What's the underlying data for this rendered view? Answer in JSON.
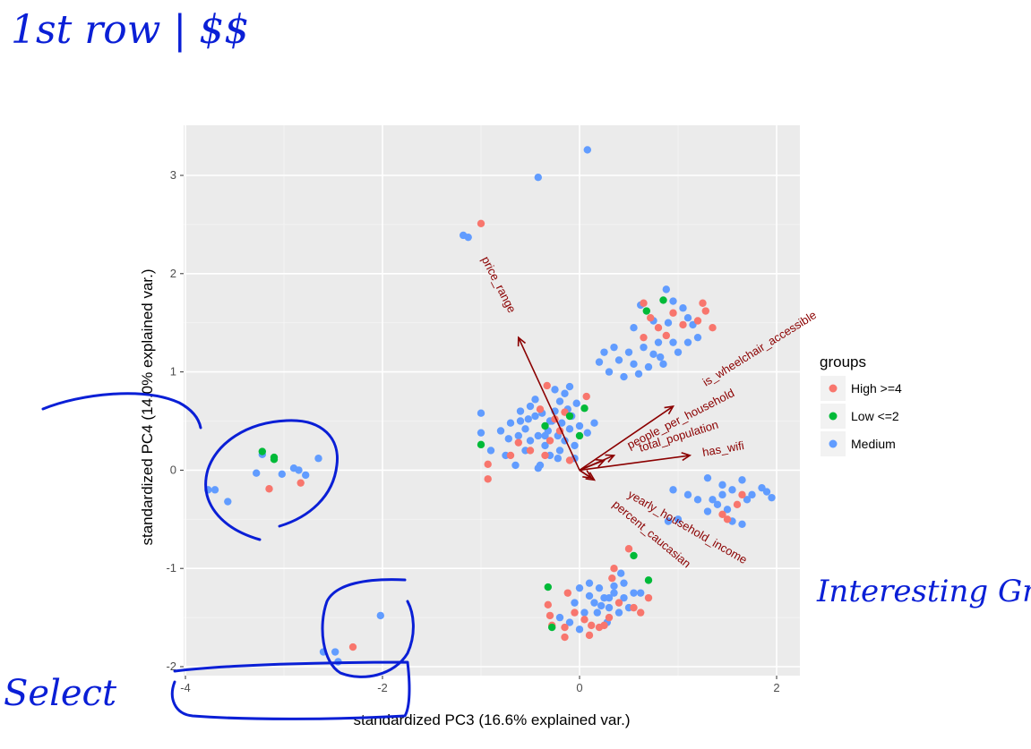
{
  "chart_data": {
    "type": "scatter",
    "xlabel": "standardized PC3 (16.6% explained var.)",
    "ylabel": "standardized PC4 (14.0% explained var.)",
    "xlim": [
      -4.1,
      2.25
    ],
    "ylim": [
      -2.05,
      3.5
    ],
    "x_ticks": [
      -4,
      -2,
      0,
      2
    ],
    "y_ticks": [
      -2,
      -1,
      0,
      1,
      2,
      3
    ],
    "grid": true,
    "legend": {
      "title": "groups",
      "position": "right"
    },
    "series": [
      {
        "name": "High >=4",
        "color": "#F8766D",
        "points": [
          [
            -1.0,
            2.51
          ],
          [
            -0.93,
            0.06
          ],
          [
            -0.93,
            -0.09
          ],
          [
            -0.33,
            0.86
          ],
          [
            -0.4,
            0.62
          ],
          [
            -0.15,
            0.59
          ],
          [
            0.07,
            0.75
          ],
          [
            -0.3,
            0.3
          ],
          [
            -0.5,
            0.2
          ],
          [
            -0.62,
            0.28
          ],
          [
            -0.2,
            0.4
          ],
          [
            -0.1,
            0.1
          ],
          [
            -0.35,
            0.15
          ],
          [
            -0.7,
            0.15
          ],
          [
            -0.25,
            0.52
          ],
          [
            -3.15,
            -0.19
          ],
          [
            -2.83,
            -0.13
          ],
          [
            -2.3,
            -1.8
          ],
          [
            0.65,
            1.7
          ],
          [
            0.72,
            1.55
          ],
          [
            0.8,
            1.45
          ],
          [
            1.05,
            1.48
          ],
          [
            1.25,
            1.7
          ],
          [
            1.28,
            1.62
          ],
          [
            1.35,
            1.45
          ],
          [
            0.88,
            1.37
          ],
          [
            0.65,
            1.35
          ],
          [
            0.95,
            1.6
          ],
          [
            1.2,
            1.52
          ],
          [
            1.65,
            -0.25
          ],
          [
            1.45,
            -0.45
          ],
          [
            1.5,
            -0.5
          ],
          [
            1.6,
            -0.35
          ],
          [
            0.5,
            -0.8
          ],
          [
            0.35,
            -1.0
          ],
          [
            0.33,
            -1.1
          ],
          [
            0.7,
            -1.3
          ],
          [
            -0.12,
            -1.25
          ],
          [
            -0.32,
            -1.37
          ],
          [
            -0.3,
            -1.48
          ],
          [
            -0.15,
            -1.6
          ],
          [
            0.05,
            -1.52
          ],
          [
            0.2,
            -1.6
          ],
          [
            0.3,
            -1.5
          ],
          [
            0.62,
            -1.45
          ],
          [
            -0.05,
            -1.45
          ],
          [
            0.12,
            -1.58
          ],
          [
            -0.15,
            -1.7
          ],
          [
            0.1,
            -1.68
          ],
          [
            0.25,
            -1.58
          ],
          [
            -0.28,
            -1.58
          ],
          [
            0.4,
            -1.35
          ],
          [
            0.55,
            -1.4
          ]
        ]
      },
      {
        "name": "Low <=2",
        "color": "#00BA38",
        "points": [
          [
            -3.22,
            0.19
          ],
          [
            -3.1,
            0.13
          ],
          [
            -3.1,
            0.11
          ],
          [
            -1.0,
            0.26
          ],
          [
            0.05,
            0.63
          ],
          [
            -0.1,
            0.55
          ],
          [
            0.0,
            0.35
          ],
          [
            -0.35,
            0.45
          ],
          [
            0.85,
            1.73
          ],
          [
            0.68,
            1.62
          ],
          [
            0.55,
            -0.87
          ],
          [
            0.7,
            -1.12
          ],
          [
            -0.32,
            -1.19
          ],
          [
            -0.28,
            -1.6
          ]
        ]
      },
      {
        "name": "Medium",
        "color": "#619CFF",
        "points": [
          [
            0.08,
            3.26
          ],
          [
            -0.42,
            2.98
          ],
          [
            -1.18,
            2.39
          ],
          [
            -1.13,
            2.37
          ],
          [
            -3.77,
            -0.2
          ],
          [
            -3.7,
            -0.2
          ],
          [
            -3.57,
            -0.32
          ],
          [
            -3.28,
            -0.03
          ],
          [
            -3.22,
            0.16
          ],
          [
            -3.02,
            -0.04
          ],
          [
            -2.9,
            0.02
          ],
          [
            -2.85,
            0.0
          ],
          [
            -2.78,
            -0.05
          ],
          [
            -2.65,
            0.12
          ],
          [
            -2.02,
            -1.48
          ],
          [
            -2.6,
            -1.85
          ],
          [
            -2.48,
            -1.85
          ],
          [
            -2.45,
            -1.95
          ],
          [
            -1.0,
            0.58
          ],
          [
            -1.0,
            0.38
          ],
          [
            -0.9,
            0.2
          ],
          [
            -0.8,
            0.4
          ],
          [
            -0.72,
            0.32
          ],
          [
            -0.7,
            0.48
          ],
          [
            -0.6,
            0.5
          ],
          [
            -0.55,
            0.42
          ],
          [
            -0.5,
            0.65
          ],
          [
            -0.45,
            0.55
          ],
          [
            -0.42,
            0.35
          ],
          [
            -0.38,
            0.58
          ],
          [
            -0.35,
            0.25
          ],
          [
            -0.32,
            0.4
          ],
          [
            -0.28,
            0.5
          ],
          [
            -0.25,
            0.6
          ],
          [
            -0.22,
            0.35
          ],
          [
            -0.2,
            0.7
          ],
          [
            -0.18,
            0.48
          ],
          [
            -0.15,
            0.3
          ],
          [
            -0.12,
            0.62
          ],
          [
            -0.1,
            0.42
          ],
          [
            -0.08,
            0.55
          ],
          [
            -0.05,
            0.25
          ],
          [
            -0.03,
            0.68
          ],
          [
            0.0,
            0.45
          ],
          [
            0.08,
            0.38
          ],
          [
            0.15,
            0.48
          ],
          [
            -0.5,
            0.3
          ],
          [
            -0.62,
            0.35
          ],
          [
            -0.3,
            0.15
          ],
          [
            -0.4,
            0.05
          ],
          [
            -0.2,
            0.2
          ],
          [
            -0.45,
            0.72
          ],
          [
            -0.25,
            0.82
          ],
          [
            -0.1,
            0.85
          ],
          [
            -0.55,
            0.2
          ],
          [
            -0.35,
            0.35
          ],
          [
            -0.6,
            0.6
          ],
          [
            -0.15,
            0.78
          ],
          [
            -0.42,
            0.02
          ],
          [
            -0.22,
            0.12
          ],
          [
            -0.65,
            0.05
          ],
          [
            -0.3,
            0.5
          ],
          [
            -0.75,
            0.15
          ],
          [
            -0.05,
            0.12
          ],
          [
            -0.52,
            0.52
          ],
          [
            0.62,
            1.68
          ],
          [
            0.88,
            1.84
          ],
          [
            0.95,
            1.72
          ],
          [
            1.05,
            1.65
          ],
          [
            1.1,
            1.55
          ],
          [
            1.15,
            1.48
          ],
          [
            0.9,
            1.5
          ],
          [
            0.75,
            1.52
          ],
          [
            0.55,
            1.45
          ],
          [
            0.5,
            1.2
          ],
          [
            0.65,
            1.25
          ],
          [
            0.8,
            1.3
          ],
          [
            0.95,
            1.3
          ],
          [
            1.1,
            1.3
          ],
          [
            1.2,
            1.35
          ],
          [
            0.35,
            1.25
          ],
          [
            0.25,
            1.2
          ],
          [
            0.2,
            1.1
          ],
          [
            0.4,
            1.12
          ],
          [
            0.55,
            1.08
          ],
          [
            0.7,
            1.05
          ],
          [
            0.85,
            1.08
          ],
          [
            0.45,
            0.95
          ],
          [
            0.6,
            0.98
          ],
          [
            0.3,
            1.0
          ],
          [
            0.82,
            1.15
          ],
          [
            1.0,
            1.2
          ],
          [
            0.75,
            1.18
          ],
          [
            1.3,
            -0.08
          ],
          [
            1.45,
            -0.15
          ],
          [
            1.65,
            -0.1
          ],
          [
            1.75,
            -0.25
          ],
          [
            1.85,
            -0.18
          ],
          [
            1.9,
            -0.22
          ],
          [
            1.95,
            -0.28
          ],
          [
            1.55,
            -0.2
          ],
          [
            1.35,
            -0.3
          ],
          [
            1.2,
            -0.3
          ],
          [
            1.1,
            -0.25
          ],
          [
            1.4,
            -0.35
          ],
          [
            1.5,
            -0.4
          ],
          [
            1.3,
            -0.42
          ],
          [
            1.55,
            -0.52
          ],
          [
            1.65,
            -0.55
          ],
          [
            1.0,
            -0.5
          ],
          [
            0.9,
            -0.52
          ],
          [
            0.95,
            -0.2
          ],
          [
            1.7,
            -0.3
          ],
          [
            1.45,
            -0.25
          ],
          [
            0.0,
            -1.2
          ],
          [
            0.1,
            -1.15
          ],
          [
            0.2,
            -1.2
          ],
          [
            0.25,
            -1.3
          ],
          [
            0.35,
            -1.25
          ],
          [
            0.45,
            -1.3
          ],
          [
            0.55,
            -1.25
          ],
          [
            0.15,
            -1.35
          ],
          [
            0.3,
            -1.4
          ],
          [
            0.4,
            -1.45
          ],
          [
            0.5,
            -1.4
          ],
          [
            -0.05,
            -1.35
          ],
          [
            0.05,
            -1.45
          ],
          [
            0.18,
            -1.45
          ],
          [
            0.28,
            -1.55
          ],
          [
            -0.1,
            -1.55
          ],
          [
            0.0,
            -1.62
          ],
          [
            0.35,
            -1.18
          ],
          [
            0.42,
            -1.05
          ],
          [
            0.62,
            -1.25
          ],
          [
            0.1,
            -1.28
          ],
          [
            -0.2,
            -1.5
          ],
          [
            0.22,
            -1.38
          ],
          [
            0.45,
            -1.15
          ],
          [
            0.3,
            -1.3
          ]
        ]
      }
    ],
    "loadings": [
      {
        "name": "price_range",
        "x": -0.62,
        "y": 1.35
      },
      {
        "name": "is_wheelchair_accessible",
        "x": 0.95,
        "y": 0.65
      },
      {
        "name": "people_per_household",
        "x": 0.25,
        "y": 0.1
      },
      {
        "name": "total_population",
        "x": 0.35,
        "y": 0.15
      },
      {
        "name": "has_wifi",
        "x": 1.12,
        "y": 0.15
      },
      {
        "name": "yearly_household_income",
        "x": 0.15,
        "y": -0.1
      },
      {
        "name": "percent_caucasian",
        "x": 0.12,
        "y": -0.08
      }
    ],
    "loading_color": "#8B0000"
  },
  "annotations": {
    "note_top": "1st row | $$",
    "note_bottom_left": "Select",
    "note_right": "Interesting Group"
  }
}
